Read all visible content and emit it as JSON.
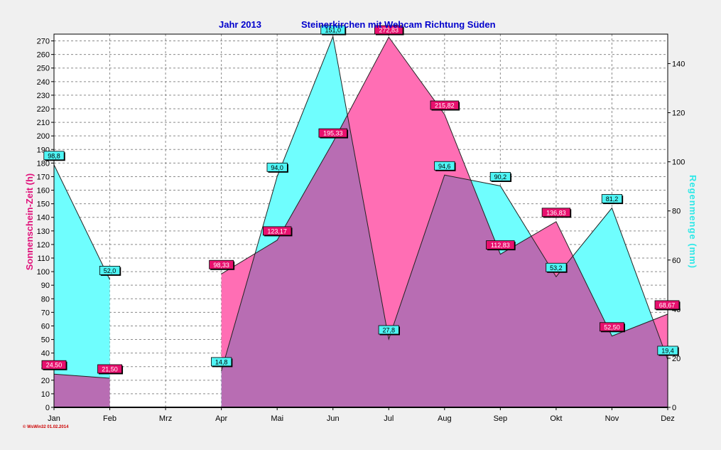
{
  "header": {
    "year_text": "Jahr  2013",
    "station_text": "Steinerkirchen mit Webcam Richtung Süden"
  },
  "credit": "© WsWin32  01.02.2014",
  "chart_data": {
    "type": "area",
    "categories": [
      "Jan",
      "Feb",
      "Mrz",
      "Apr",
      "Mai",
      "Jun",
      "Jul",
      "Aug",
      "Sep",
      "Okt",
      "Nov",
      "Dez"
    ],
    "ylabel_left": "Sonnenschein-Zeit  (h)",
    "ylabel_right": "Regenmenge  (mm)",
    "ylim_left": [
      0,
      275
    ],
    "ylim_right": [
      0,
      152
    ],
    "yticks_left": [
      0,
      10,
      20,
      30,
      40,
      50,
      60,
      70,
      80,
      90,
      100,
      110,
      120,
      130,
      140,
      150,
      160,
      170,
      180,
      190,
      200,
      210,
      220,
      230,
      240,
      250,
      260,
      270
    ],
    "yticks_right": [
      0,
      20,
      40,
      60,
      80,
      100,
      120,
      140
    ],
    "grid": true,
    "series": [
      {
        "axis": "left",
        "values": [
          24.5,
          21.5,
          0,
          98.33,
          123.17,
          195.33,
          272.83,
          215.82,
          112.83,
          136.83,
          52.5,
          68.67
        ],
        "labels": [
          "24,50",
          "21,50",
          null,
          "98,33",
          "123,17",
          "195,33",
          "272,83",
          "215,82",
          "112,83",
          "136,83",
          "52,50",
          "68,67"
        ],
        "color": "#ff6eb4",
        "label_color": "#e8106e"
      },
      {
        "axis": "right",
        "values": [
          98.8,
          52.0,
          0,
          14.8,
          94.0,
          151.0,
          27.8,
          94.6,
          90.2,
          53.2,
          81.2,
          19.4
        ],
        "labels": [
          "98,8",
          "52,0",
          null,
          "14,8",
          "94,0",
          "151,0",
          "27,8",
          "94,6",
          "90,2",
          "53,2",
          "81,2",
          "19,4"
        ],
        "color": "#6ffefe",
        "label_color": "#4ff5f5"
      }
    ],
    "overlap_color": "#b86db3"
  }
}
